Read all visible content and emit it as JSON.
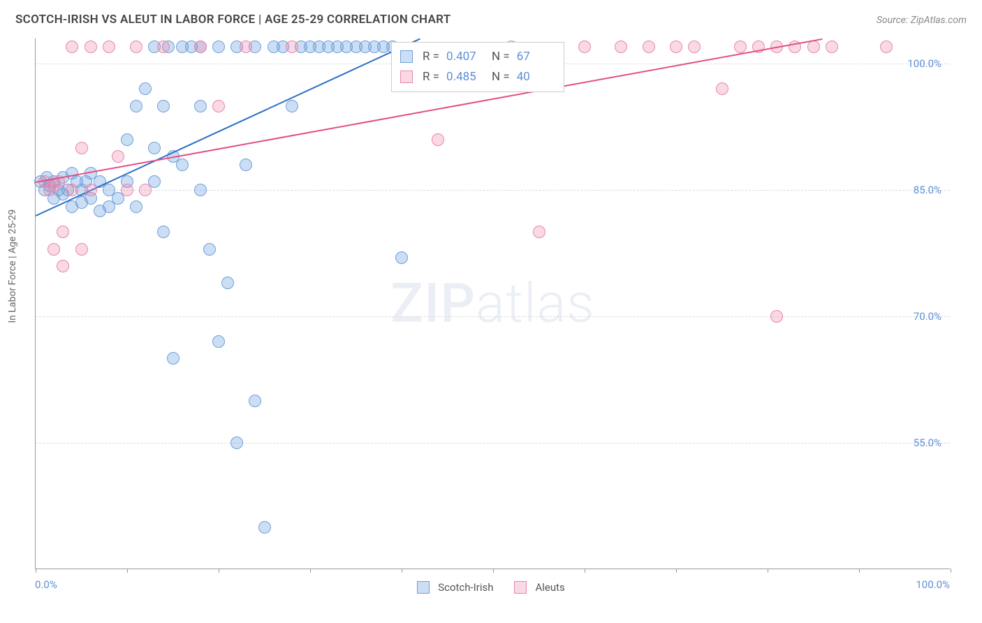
{
  "chart": {
    "type": "scatter",
    "title": "SCOTCH-IRISH VS ALEUT IN LABOR FORCE | AGE 25-29 CORRELATION CHART",
    "source": "Source: ZipAtlas.com",
    "y_axis_title": "In Labor Force | Age 25-29",
    "background_color": "#ffffff",
    "grid_color": "#dddddd",
    "axis_color": "#999999",
    "label_color": "#5b8fd6",
    "title_color": "#444444",
    "title_fontsize": 17,
    "label_fontsize": 15,
    "x_range": [
      0,
      100
    ],
    "y_range": [
      40,
      103
    ],
    "x_labels": {
      "min": "0.0%",
      "max": "100.0%"
    },
    "x_tick_positions": [
      0,
      10,
      20,
      30,
      40,
      50,
      60,
      70,
      80,
      90,
      100
    ],
    "y_gridlines": [
      {
        "value": 55.0,
        "label": "55.0%"
      },
      {
        "value": 70.0,
        "label": "70.0%"
      },
      {
        "value": 85.0,
        "label": "85.0%"
      },
      {
        "value": 100.0,
        "label": "100.0%"
      }
    ],
    "watermark": {
      "bold": "ZIP",
      "rest": "atlas"
    },
    "series": [
      {
        "name": "Scotch-Irish",
        "fill_color": "rgba(110,160,220,0.35)",
        "stroke_color": "#6ea0dc",
        "line_color": "#2b6fc4",
        "marker_radius": 9,
        "stats": {
          "R_label": "R =",
          "R": "0.407",
          "N_label": "N =",
          "N": "67"
        },
        "trend": {
          "x1": 0,
          "y1": 82,
          "x2": 42,
          "y2": 103
        },
        "points": [
          {
            "x": 0.5,
            "y": 86
          },
          {
            "x": 1,
            "y": 85
          },
          {
            "x": 1.2,
            "y": 86.5
          },
          {
            "x": 1.5,
            "y": 85.5
          },
          {
            "x": 2,
            "y": 86
          },
          {
            "x": 2,
            "y": 84
          },
          {
            "x": 2.5,
            "y": 85
          },
          {
            "x": 3,
            "y": 86.5
          },
          {
            "x": 3,
            "y": 84.5
          },
          {
            "x": 3.5,
            "y": 85
          },
          {
            "x": 4,
            "y": 87
          },
          {
            "x": 4,
            "y": 83
          },
          {
            "x": 4.5,
            "y": 86
          },
          {
            "x": 5,
            "y": 85
          },
          {
            "x": 5,
            "y": 83.5
          },
          {
            "x": 5.5,
            "y": 86
          },
          {
            "x": 6,
            "y": 87
          },
          {
            "x": 6,
            "y": 84
          },
          {
            "x": 7,
            "y": 86
          },
          {
            "x": 7,
            "y": 82.5
          },
          {
            "x": 8,
            "y": 85
          },
          {
            "x": 8,
            "y": 83
          },
          {
            "x": 9,
            "y": 84
          },
          {
            "x": 10,
            "y": 91
          },
          {
            "x": 10,
            "y": 86
          },
          {
            "x": 11,
            "y": 95
          },
          {
            "x": 11,
            "y": 83
          },
          {
            "x": 12,
            "y": 97
          },
          {
            "x": 13,
            "y": 90
          },
          {
            "x": 13,
            "y": 86
          },
          {
            "x": 14,
            "y": 95
          },
          {
            "x": 14,
            "y": 80
          },
          {
            "x": 15,
            "y": 89
          },
          {
            "x": 15,
            "y": 65
          },
          {
            "x": 16,
            "y": 88
          },
          {
            "x": 17,
            "y": 102
          },
          {
            "x": 18,
            "y": 102
          },
          {
            "x": 18,
            "y": 85
          },
          {
            "x": 19,
            "y": 78
          },
          {
            "x": 20,
            "y": 102
          },
          {
            "x": 20,
            "y": 67
          },
          {
            "x": 21,
            "y": 74
          },
          {
            "x": 22,
            "y": 102
          },
          {
            "x": 22,
            "y": 55
          },
          {
            "x": 23,
            "y": 88
          },
          {
            "x": 24,
            "y": 102
          },
          {
            "x": 24,
            "y": 60
          },
          {
            "x": 25,
            "y": 45
          },
          {
            "x": 26,
            "y": 102
          },
          {
            "x": 27,
            "y": 102
          },
          {
            "x": 28,
            "y": 95
          },
          {
            "x": 29,
            "y": 102
          },
          {
            "x": 30,
            "y": 102
          },
          {
            "x": 31,
            "y": 102
          },
          {
            "x": 32,
            "y": 102
          },
          {
            "x": 33,
            "y": 102
          },
          {
            "x": 34,
            "y": 102
          },
          {
            "x": 35,
            "y": 102
          },
          {
            "x": 36,
            "y": 102
          },
          {
            "x": 37,
            "y": 102
          },
          {
            "x": 38,
            "y": 102
          },
          {
            "x": 39,
            "y": 102
          },
          {
            "x": 40,
            "y": 77
          },
          {
            "x": 18,
            "y": 95
          },
          {
            "x": 16,
            "y": 102
          },
          {
            "x": 14.5,
            "y": 102
          },
          {
            "x": 13,
            "y": 102
          }
        ]
      },
      {
        "name": "Aleuts",
        "fill_color": "rgba(235,130,170,0.30)",
        "stroke_color": "#e986ab",
        "line_color": "#e34d85",
        "marker_radius": 9,
        "stats": {
          "R_label": "R =",
          "R": "0.485",
          "N_label": "N =",
          "N": "40"
        },
        "trend": {
          "x1": 0,
          "y1": 86,
          "x2": 86,
          "y2": 103
        },
        "points": [
          {
            "x": 1,
            "y": 86
          },
          {
            "x": 1.5,
            "y": 85
          },
          {
            "x": 2,
            "y": 85.5
          },
          {
            "x": 2,
            "y": 78
          },
          {
            "x": 2.5,
            "y": 86
          },
          {
            "x": 3,
            "y": 80
          },
          {
            "x": 3,
            "y": 76
          },
          {
            "x": 4,
            "y": 85
          },
          {
            "x": 5,
            "y": 90
          },
          {
            "x": 5,
            "y": 78
          },
          {
            "x": 6,
            "y": 85
          },
          {
            "x": 6,
            "y": 102
          },
          {
            "x": 8,
            "y": 102
          },
          {
            "x": 9,
            "y": 89
          },
          {
            "x": 10,
            "y": 85
          },
          {
            "x": 11,
            "y": 102
          },
          {
            "x": 12,
            "y": 85
          },
          {
            "x": 14,
            "y": 102
          },
          {
            "x": 18,
            "y": 102
          },
          {
            "x": 20,
            "y": 95
          },
          {
            "x": 23,
            "y": 102
          },
          {
            "x": 28,
            "y": 102
          },
          {
            "x": 44,
            "y": 91
          },
          {
            "x": 52,
            "y": 102
          },
          {
            "x": 55,
            "y": 80
          },
          {
            "x": 60,
            "y": 102
          },
          {
            "x": 64,
            "y": 102
          },
          {
            "x": 67,
            "y": 102
          },
          {
            "x": 70,
            "y": 102
          },
          {
            "x": 72,
            "y": 102
          },
          {
            "x": 75,
            "y": 97
          },
          {
            "x": 77,
            "y": 102
          },
          {
            "x": 79,
            "y": 102
          },
          {
            "x": 81,
            "y": 102
          },
          {
            "x": 81,
            "y": 70
          },
          {
            "x": 83,
            "y": 102
          },
          {
            "x": 85,
            "y": 102
          },
          {
            "x": 87,
            "y": 102
          },
          {
            "x": 93,
            "y": 102
          },
          {
            "x": 4,
            "y": 102
          }
        ]
      }
    ]
  }
}
